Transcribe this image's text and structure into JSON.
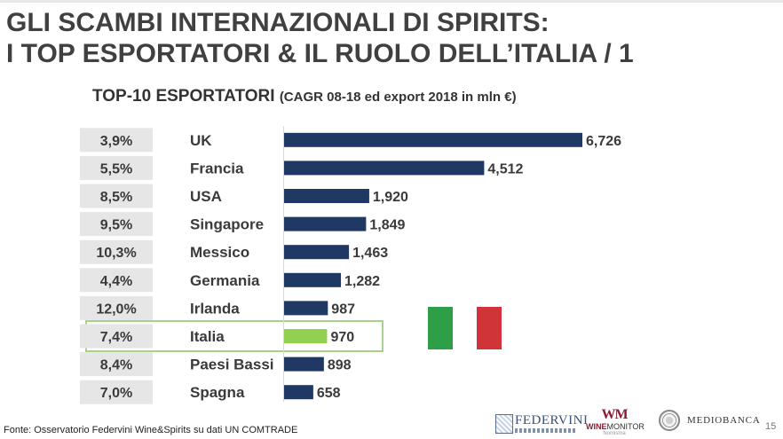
{
  "title": {
    "line1": "GLI SCAMBI INTERNAZIONALI DI SPIRITS:",
    "line2": "I TOP ESPORTATORI & IL RUOLO DELL’ITALIA / 1"
  },
  "chart_data": {
    "type": "bar",
    "orientation": "horizontal",
    "title": "TOP-10 ESPORTATORI",
    "subtitle": "(CAGR 08-18 ed export 2018 in mln €)",
    "categories": [
      "UK",
      "Francia",
      "USA",
      "Singapore",
      "Messico",
      "Germania",
      "Irlanda",
      "Italia",
      "Paesi Bassi",
      "Spagna"
    ],
    "values": [
      6726,
      4512,
      1920,
      1849,
      1463,
      1282,
      987,
      970,
      898,
      658
    ],
    "value_labels": [
      "6,726",
      "4,512",
      "1,920",
      "1,849",
      "1,463",
      "1,282",
      "987",
      "970",
      "898",
      "658"
    ],
    "cagr": [
      "3,9%",
      "5,5%",
      "8,5%",
      "9,5%",
      "10,3%",
      "4,4%",
      "12,0%",
      "7,4%",
      "8,4%",
      "7,0%"
    ],
    "highlight": "Italia",
    "bar_color": "#1f3864",
    "highlight_color": "#92d050",
    "cagr_box_color": "#e7e6e6",
    "highlight_border_color": "#a9d18e",
    "xlim": [
      0,
      7000
    ],
    "grid": false,
    "legend": "none"
  },
  "flag": {
    "colors": [
      "#2e9e47",
      "#ffffff",
      "#d13438"
    ]
  },
  "footer": {
    "source": "Fonte: Osservatorio Federvini Wine&Spirits su dati UN COMTRADE",
    "page_number": "15"
  },
  "logos": {
    "federvini": "FEDERVINI",
    "winemonitor_mark": "WM",
    "winemonitor_wine": "WINE",
    "winemonitor_monitor": "MONITOR",
    "winemonitor_tag": "Nomisma",
    "mediobanca": "MEDIOBANCA"
  }
}
